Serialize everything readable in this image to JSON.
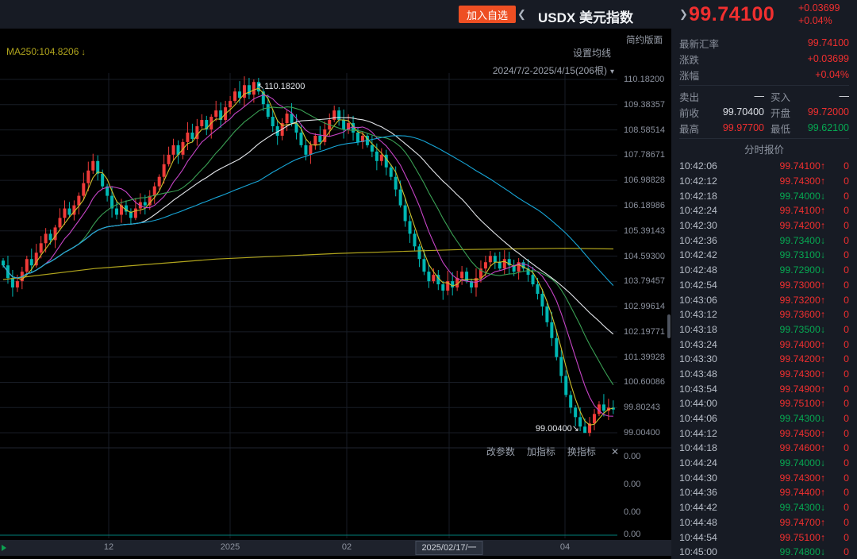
{
  "topbar": {
    "add_watchlist": "加入自选",
    "symbol": "USDX 美元指数",
    "price": "99.74100",
    "change": "+0.03699",
    "change_pct": "+0.04%"
  },
  "icons": {
    "prev": "❮",
    "next": "❯",
    "caret": "▾",
    "close": "✕",
    "up": "↑",
    "down": "↓",
    "peak_arrow": "↖",
    "trough_arrow": "↘"
  },
  "chart": {
    "legend": "MA250:104.8206",
    "settings_label": "设置均线",
    "range_label": "2024/7/2-2025/4/15(206根)",
    "layout_label": "简约版面",
    "peak_label": "110.18200",
    "low_label": "99.00400",
    "toolbar": [
      "改参数",
      "加指标",
      "换指标"
    ],
    "axis_labels": [
      "110.18200",
      "109.38357",
      "108.58514",
      "107.78671",
      "106.98828",
      "106.18986",
      "105.39143",
      "104.59300",
      "103.79457",
      "102.99614",
      "102.19771",
      "101.39928",
      "100.60086",
      "99.80243",
      "99.00400"
    ],
    "sub_axis_labels": [
      "0.00",
      "0.00",
      "0.00",
      "0.00"
    ],
    "x_ticks": [
      {
        "label": "12",
        "x": 137
      },
      {
        "label": "2025",
        "x": 290
      },
      {
        "label": "02",
        "x": 437
      },
      {
        "label": "2025/02/17/一",
        "x": 566,
        "highlight": true
      },
      {
        "label": "04",
        "x": 712
      }
    ]
  },
  "chart_data": {
    "type": "candlestick",
    "title": "USDX 美元指数 日K",
    "x_range": "2024/7/2 - 2025/4/15 (206根)",
    "y_min": 99.004,
    "y_max": 110.182,
    "closes": [
      104.3,
      103.9,
      103.6,
      103.8,
      104.1,
      104.5,
      104.3,
      104.7,
      105.0,
      105.3,
      105.1,
      105.5,
      105.8,
      106.1,
      105.9,
      106.2,
      106.5,
      106.9,
      107.3,
      107.6,
      107.2,
      106.8,
      106.5,
      106.1,
      105.9,
      106.2,
      106.0,
      105.8,
      106.1,
      106.3,
      106.2,
      106.5,
      106.8,
      107.1,
      107.5,
      107.8,
      108.1,
      107.8,
      108.2,
      108.5,
      108.3,
      108.7,
      108.9,
      108.6,
      109.0,
      109.2,
      108.9,
      109.3,
      109.5,
      109.8,
      109.6,
      110.0,
      109.7,
      110.1,
      109.8,
      109.4,
      109.0,
      108.7,
      108.4,
      108.8,
      109.1,
      108.8,
      108.5,
      108.1,
      107.8,
      108.1,
      108.4,
      108.2,
      108.6,
      108.9,
      109.2,
      108.9,
      108.6,
      108.8,
      108.5,
      108.2,
      108.4,
      108.1,
      107.9,
      107.6,
      107.8,
      107.4,
      107.1,
      106.7,
      106.2,
      105.7,
      105.3,
      104.9,
      104.5,
      104.1,
      103.8,
      104.0,
      103.7,
      103.5,
      103.8,
      103.6,
      103.9,
      104.1,
      103.8,
      103.6,
      103.9,
      104.2,
      104.4,
      104.6,
      104.4,
      104.2,
      104.5,
      104.3,
      104.1,
      104.4,
      104.2,
      104.0,
      103.7,
      103.4,
      103.0,
      102.5,
      102.0,
      101.4,
      100.8,
      100.2,
      99.8,
      99.5,
      99.2,
      99.0,
      99.3,
      99.6,
      99.9,
      99.7,
      99.8,
      99.74
    ],
    "peak": {
      "index": 53,
      "high": 110.182
    },
    "trough": {
      "index": 123,
      "low": 99.004
    },
    "ma_lines": [
      {
        "name": "MA5",
        "window": 4,
        "color": "#cfc02c"
      },
      {
        "name": "MA10",
        "window": 9,
        "color": "#c644c6"
      },
      {
        "name": "MA30",
        "window": 17,
        "color": "#3aa054"
      },
      {
        "name": "MA60",
        "window": 30,
        "color": "#e3e6ea"
      },
      {
        "name": "MA120",
        "window": 55,
        "color": "#17a5d6"
      }
    ],
    "ma250": {
      "name": "MA250",
      "value": 104.8206,
      "color": "#b1a51d",
      "points": [
        [
          0,
          103.85
        ],
        [
          0.15,
          104.2
        ],
        [
          0.35,
          104.5
        ],
        [
          0.55,
          104.68
        ],
        [
          0.75,
          104.8
        ],
        [
          0.92,
          104.84
        ],
        [
          1,
          104.82
        ]
      ]
    }
  },
  "sidebar": {
    "latest": {
      "label": "最新汇率",
      "value": "99.74100"
    },
    "change": {
      "label": "涨跌",
      "value": "+0.03699"
    },
    "change_pct": {
      "label": "涨幅",
      "value": "+0.04%"
    },
    "sell": {
      "label": "卖出",
      "value": "—"
    },
    "buy": {
      "label": "买入",
      "value": "—"
    },
    "prev_close": {
      "label": "前收",
      "value": "99.70400"
    },
    "open": {
      "label": "开盘",
      "value": "99.72000"
    },
    "high": {
      "label": "最高",
      "value": "99.97700"
    },
    "low": {
      "label": "最低",
      "value": "99.62100"
    },
    "quotes_header": "分时报价",
    "quotes": [
      [
        "10:42:06",
        "99.74100",
        "up",
        "0"
      ],
      [
        "10:42:12",
        "99.74300",
        "up",
        "0"
      ],
      [
        "10:42:18",
        "99.74000",
        "down",
        "0"
      ],
      [
        "10:42:24",
        "99.74100",
        "up",
        "0"
      ],
      [
        "10:42:30",
        "99.74200",
        "up",
        "0"
      ],
      [
        "10:42:36",
        "99.73400",
        "down",
        "0"
      ],
      [
        "10:42:42",
        "99.73100",
        "down",
        "0"
      ],
      [
        "10:42:48",
        "99.72900",
        "down",
        "0"
      ],
      [
        "10:42:54",
        "99.73000",
        "up",
        "0"
      ],
      [
        "10:43:06",
        "99.73200",
        "up",
        "0"
      ],
      [
        "10:43:12",
        "99.73600",
        "up",
        "0"
      ],
      [
        "10:43:18",
        "99.73500",
        "down",
        "0"
      ],
      [
        "10:43:24",
        "99.74000",
        "up",
        "0"
      ],
      [
        "10:43:30",
        "99.74200",
        "up",
        "0"
      ],
      [
        "10:43:48",
        "99.74300",
        "up",
        "0"
      ],
      [
        "10:43:54",
        "99.74900",
        "up",
        "0"
      ],
      [
        "10:44:00",
        "99.75100",
        "up",
        "0"
      ],
      [
        "10:44:06",
        "99.74300",
        "down",
        "0"
      ],
      [
        "10:44:12",
        "99.74500",
        "up",
        "0"
      ],
      [
        "10:44:18",
        "99.74600",
        "up",
        "0"
      ],
      [
        "10:44:24",
        "99.74000",
        "down",
        "0"
      ],
      [
        "10:44:30",
        "99.74300",
        "up",
        "0"
      ],
      [
        "10:44:36",
        "99.74400",
        "up",
        "0"
      ],
      [
        "10:44:42",
        "99.74300",
        "down",
        "0"
      ],
      [
        "10:44:48",
        "99.74700",
        "up",
        "0"
      ],
      [
        "10:44:54",
        "99.75100",
        "up",
        "0"
      ],
      [
        "10:45:00",
        "99.74800",
        "down",
        "0"
      ]
    ]
  },
  "colors": {
    "accent_red": "#f12f2f",
    "green": "#06a852",
    "candle_up": "#ef3b39",
    "candle_down": "#00b7b3",
    "button_orange": "#ee4f23",
    "ma250_yellow": "#b1a51d",
    "panel_bg": "#171b24",
    "chart_bg": "#000000"
  }
}
